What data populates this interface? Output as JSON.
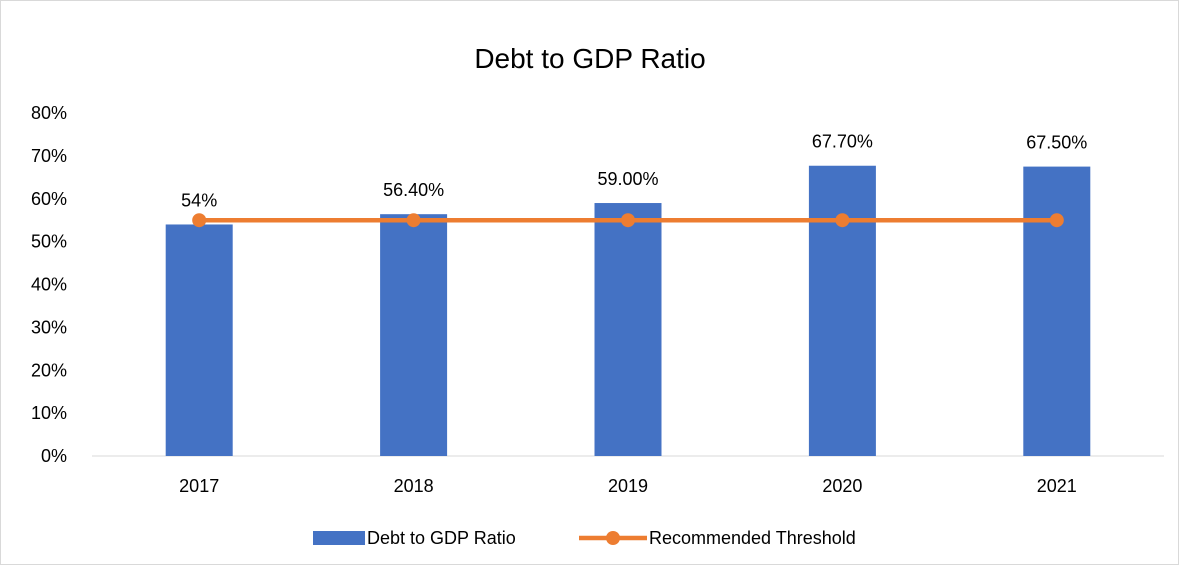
{
  "chart_data": {
    "type": "bar",
    "title": "Debt to GDP Ratio",
    "categories": [
      "2017",
      "2018",
      "2019",
      "2020",
      "2021"
    ],
    "series": [
      {
        "name": "Debt to GDP Ratio",
        "type": "bar",
        "values": [
          54.0,
          56.4,
          59.0,
          67.7,
          67.5
        ],
        "data_labels": [
          "54%",
          "56.40%",
          "59.00%",
          "67.70%",
          "67.50%"
        ],
        "color": "#4472C4"
      },
      {
        "name": "Recommended Threshold",
        "type": "line",
        "values": [
          55,
          55,
          55,
          55,
          55
        ],
        "color": "#ED7D31"
      }
    ],
    "y_ticks": [
      "0%",
      "10%",
      "20%",
      "30%",
      "40%",
      "50%",
      "60%",
      "70%",
      "80%"
    ],
    "ylim": [
      0,
      80
    ],
    "legend_position": "bottom",
    "grid": false
  }
}
